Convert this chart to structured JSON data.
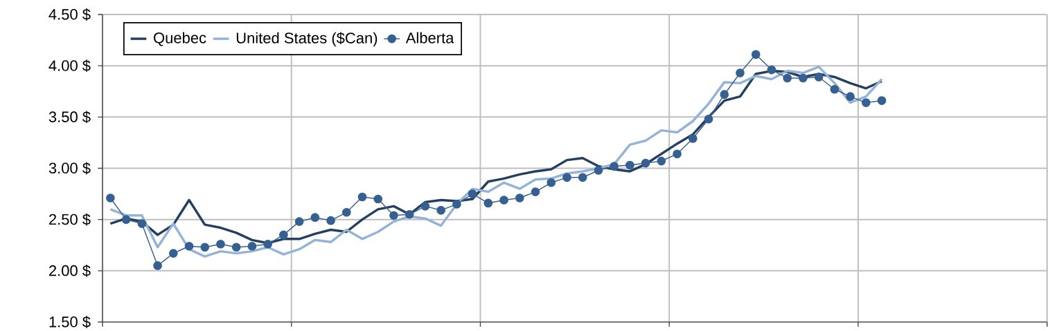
{
  "chart_data": {
    "type": "line",
    "categories": [
      null,
      null,
      null,
      null,
      null,
      null,
      null,
      null,
      null,
      null,
      null,
      null,
      null,
      null,
      null,
      null,
      null,
      null,
      null,
      null,
      null,
      null,
      null,
      null,
      null,
      null,
      null,
      null,
      null,
      null,
      null,
      null,
      null,
      null,
      null,
      null,
      null,
      null,
      null,
      null,
      null,
      null,
      null,
      null,
      null,
      null,
      null,
      null,
      null,
      null,
      null,
      null,
      null,
      null,
      null,
      null,
      null,
      null,
      null,
      null
    ],
    "series": [
      {
        "name": "Quebec",
        "color": "#243f60",
        "values": [
          2.46,
          2.51,
          2.48,
          2.35,
          2.45,
          2.69,
          2.45,
          2.42,
          2.37,
          2.3,
          2.27,
          2.31,
          2.31,
          2.36,
          2.4,
          2.38,
          2.5,
          2.6,
          2.63,
          2.55,
          2.67,
          2.69,
          2.68,
          2.7,
          2.87,
          2.9,
          2.94,
          2.97,
          2.99,
          3.08,
          3.1,
          3.02,
          2.99,
          2.97,
          3.04,
          3.14,
          3.24,
          3.33,
          3.5,
          3.66,
          3.7,
          3.92,
          3.95,
          3.94,
          3.89,
          3.92,
          3.89,
          3.83,
          3.78,
          3.85,
          null,
          null,
          null,
          null,
          null,
          null,
          null,
          null,
          null,
          null
        ]
      },
      {
        "name": "United States ($Can)",
        "color": "#95b3d7",
        "values": [
          2.6,
          2.54,
          2.54,
          2.23,
          2.46,
          2.21,
          2.14,
          2.19,
          2.17,
          2.19,
          2.23,
          2.16,
          2.21,
          2.3,
          2.28,
          2.4,
          2.31,
          2.38,
          2.48,
          2.53,
          2.51,
          2.44,
          2.65,
          2.8,
          2.77,
          2.86,
          2.8,
          2.89,
          2.9,
          2.95,
          2.97,
          3.0,
          3.04,
          3.23,
          3.27,
          3.37,
          3.35,
          3.46,
          3.63,
          3.84,
          3.83,
          3.9,
          3.87,
          3.95,
          3.93,
          3.99,
          3.83,
          3.64,
          3.7,
          3.87,
          null,
          null,
          null,
          null,
          null,
          null,
          null,
          null,
          null,
          null
        ]
      },
      {
        "name": "Alberta",
        "color": "#366092",
        "marker": "circle",
        "values": [
          2.71,
          2.5,
          2.46,
          2.05,
          2.17,
          2.24,
          2.23,
          2.26,
          2.23,
          2.24,
          2.26,
          2.35,
          2.48,
          2.52,
          2.49,
          2.57,
          2.72,
          2.7,
          2.54,
          2.55,
          2.63,
          2.59,
          2.65,
          2.75,
          2.66,
          2.69,
          2.71,
          2.77,
          2.86,
          2.91,
          2.91,
          2.98,
          3.02,
          3.03,
          3.05,
          3.07,
          3.14,
          3.29,
          3.48,
          3.72,
          3.93,
          4.11,
          3.96,
          3.88,
          3.88,
          3.89,
          3.77,
          3.7,
          3.64,
          3.66,
          null,
          null,
          null,
          null,
          null,
          null,
          null,
          null,
          null,
          null
        ]
      }
    ],
    "ylim": [
      1.5,
      4.5
    ],
    "yticks": [
      {
        "value": 1.5,
        "label": "1.50  $"
      },
      {
        "value": 2.0,
        "label": "2.00  $"
      },
      {
        "value": 2.5,
        "label": "2.50  $"
      },
      {
        "value": 3.0,
        "label": "3.00  $"
      },
      {
        "value": 3.5,
        "label": "3.50  $"
      },
      {
        "value": 4.0,
        "label": "4.00  $"
      },
      {
        "value": 4.5,
        "label": "4.50  $"
      }
    ],
    "tick_labels": "y",
    "grid": true,
    "legend": "top left"
  }
}
